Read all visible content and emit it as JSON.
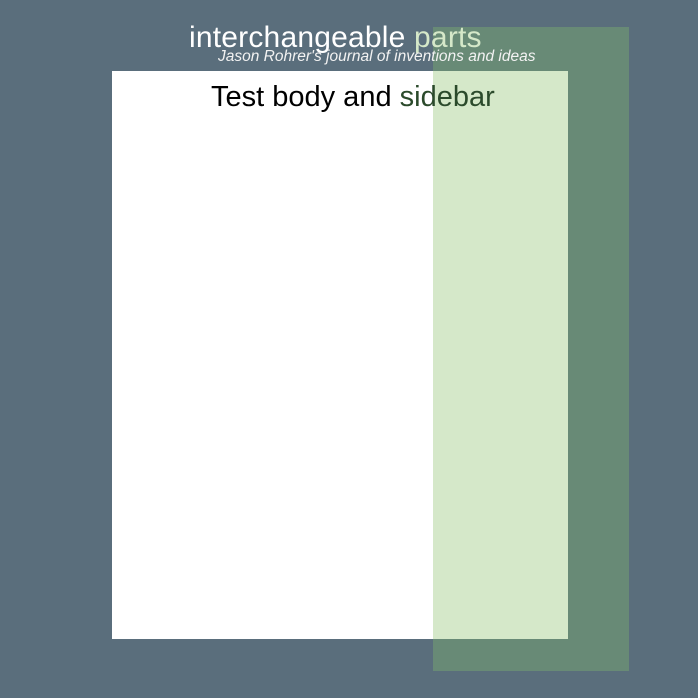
{
  "colors": {
    "background": "#5a6e7c",
    "sidebar_bg": "#688a76",
    "sidebar_overlay": "#d5e8c9",
    "title_accent": "#d5e8c9",
    "heading_accent": "#2b4a2b"
  },
  "header": {
    "title_main": "interchangeable ",
    "title_accent": "parts",
    "subtitle": "Jason Rohrer's journal of inventions and ideas"
  },
  "content": {
    "heading_main": "Test body and ",
    "heading_accent": "sidebar"
  }
}
